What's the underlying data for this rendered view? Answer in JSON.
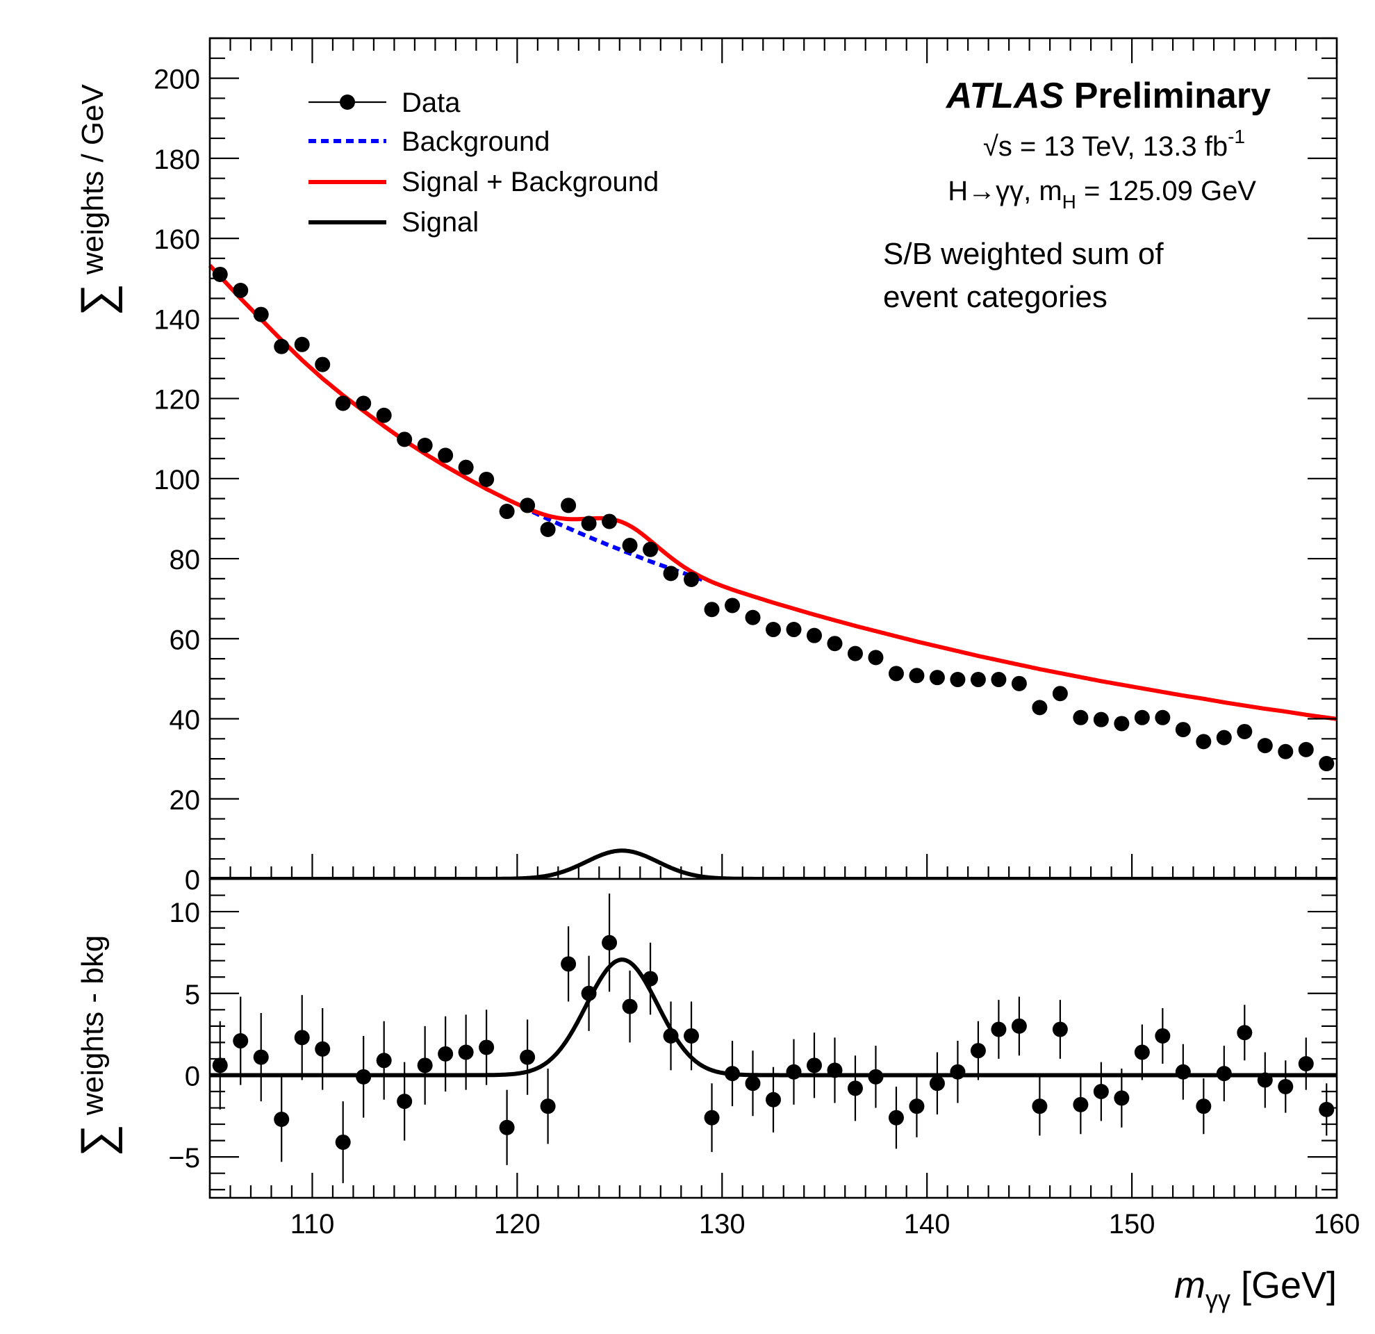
{
  "chart_data": [
    {
      "type": "scatter",
      "panel": "main",
      "ylabel_symbol": "∑",
      "ylabel": "weights / GeV",
      "xlim": [
        105,
        160
      ],
      "ylim": [
        0,
        210
      ],
      "yticks": [
        0,
        20,
        40,
        60,
        80,
        100,
        120,
        140,
        160,
        180,
        200
      ],
      "legend": {
        "placement": "top-left",
        "entries": [
          {
            "label": "Data",
            "style": "marker"
          },
          {
            "label": "Background",
            "style": "dashed",
            "color": "#0000ff"
          },
          {
            "label": "Signal + Background",
            "style": "line",
            "color": "#ff0000"
          },
          {
            "label": "Signal",
            "style": "line",
            "color": "#000000"
          }
        ]
      },
      "annotations": {
        "experiment": "ATLAS",
        "status": "Preliminary",
        "energy_prefix": "√s = 13 TeV, 13.3 fb",
        "energy_sup": "-1",
        "channel_prefix": "H→γγ, m",
        "channel_sub": "H",
        "channel_suffix": " = 125.09 GeV",
        "note_line1": "S/B weighted sum of",
        "note_line2": "event categories"
      },
      "x": [
        105.5,
        106.5,
        107.5,
        108.5,
        109.5,
        110.5,
        111.5,
        112.5,
        113.5,
        114.5,
        115.5,
        116.5,
        117.5,
        118.5,
        119.5,
        120.5,
        121.5,
        122.5,
        123.5,
        124.5,
        125.5,
        126.5,
        127.5,
        128.5,
        129.5,
        130.5,
        131.5,
        132.5,
        133.5,
        134.5,
        135.5,
        136.5,
        137.5,
        138.5,
        139.5,
        140.5,
        141.5,
        142.5,
        143.5,
        144.5,
        145.5,
        146.5,
        147.5,
        148.5,
        149.5,
        150.5,
        151.5,
        152.5,
        153.5,
        154.5,
        155.5,
        156.5,
        157.5,
        158.5,
        159.5
      ],
      "series": [
        {
          "name": "Data",
          "values": [
            151,
            147,
            141,
            133,
            133.5,
            128.5,
            118.8,
            118.8,
            115.8,
            109.8,
            108.3,
            105.8,
            102.8,
            99.8,
            91.8,
            93.3,
            87.3,
            93.3,
            88.8,
            89.3,
            83.3,
            82.3,
            76.3,
            74.8,
            67.3,
            68.3,
            65.3,
            62.3,
            62.3,
            60.8,
            58.8,
            56.3,
            55.3,
            51.3,
            50.8,
            50.3,
            49.8,
            49.8,
            49.8,
            48.8,
            42.8,
            46.3,
            40.3,
            39.8,
            38.8,
            40.3,
            40.3,
            37.3,
            34.3,
            35.3,
            36.8,
            33.3,
            31.8,
            32.3,
            28.8
          ]
        },
        {
          "name": "Background",
          "values": [
            150.5,
            145,
            139.8,
            134.6,
            129.6,
            125,
            120.8,
            116.9,
            113.1,
            109.5,
            106.2,
            103.1,
            100.2,
            97.4,
            94.8,
            92.3,
            89.9,
            87.6,
            85.4,
            83.3,
            81.3,
            79.3,
            77.5,
            75.7,
            73.9,
            72.2,
            70.6,
            69,
            67.5,
            66,
            64.6,
            63.2,
            61.9,
            60.6,
            59.3,
            58.1,
            56.9,
            55.7,
            54.6,
            53.5,
            52.4,
            51.4,
            50.4,
            49.4,
            48.5,
            47.6,
            46.7,
            45.8,
            45,
            44.1,
            43.3,
            42.5,
            41.8,
            41,
            40.3
          ]
        },
        {
          "name": "Signal",
          "values": [
            0,
            0,
            0,
            0,
            0,
            0,
            0,
            0,
            0,
            0,
            0,
            0,
            0,
            0.01,
            0.05,
            0.23,
            0.82,
            2.22,
            4.55,
            6.66,
            6.94,
            5.19,
            2.78,
            1.07,
            0.29,
            0.06,
            0.01,
            0,
            0,
            0,
            0,
            0,
            0,
            0,
            0,
            0,
            0,
            0,
            0,
            0,
            0,
            0,
            0,
            0,
            0,
            0,
            0,
            0,
            0,
            0,
            0,
            0,
            0,
            0,
            0
          ]
        }
      ]
    },
    {
      "type": "scatter",
      "panel": "residual",
      "ylabel_symbol": "∑",
      "ylabel": "weights - bkg",
      "xlabel_main": "m",
      "xlabel_sub": "γγ",
      "xlabel_unit": " [GeV]",
      "xlim": [
        105,
        160
      ],
      "ylim": [
        -7.5,
        12
      ],
      "yticks": [
        -5,
        0,
        5,
        10
      ],
      "ytick_labels": [
        "−5",
        "0",
        "5",
        "10"
      ],
      "xticks": [
        110,
        120,
        130,
        140,
        150,
        160
      ],
      "x": [
        105.5,
        106.5,
        107.5,
        108.5,
        109.5,
        110.5,
        111.5,
        112.5,
        113.5,
        114.5,
        115.5,
        116.5,
        117.5,
        118.5,
        119.5,
        120.5,
        121.5,
        122.5,
        123.5,
        124.5,
        125.5,
        126.5,
        127.5,
        128.5,
        129.5,
        130.5,
        131.5,
        132.5,
        133.5,
        134.5,
        135.5,
        136.5,
        137.5,
        138.5,
        139.5,
        140.5,
        141.5,
        142.5,
        143.5,
        144.5,
        145.5,
        146.5,
        147.5,
        148.5,
        149.5,
        150.5,
        151.5,
        152.5,
        153.5,
        154.5,
        155.5,
        156.5,
        157.5,
        158.5,
        159.5
      ],
      "values": [
        0.6,
        2.1,
        1.1,
        -2.7,
        2.3,
        1.6,
        -4.1,
        -0.1,
        0.9,
        -1.6,
        0.6,
        1.3,
        1.4,
        1.7,
        -3.2,
        1.1,
        -1.9,
        6.8,
        5.0,
        8.1,
        4.2,
        5.9,
        2.4,
        2.4,
        -2.6,
        0.1,
        -0.5,
        -1.5,
        0.2,
        0.6,
        0.3,
        -0.8,
        -0.1,
        -2.6,
        -1.9,
        -0.5,
        0.2,
        1.5,
        2.8,
        3.0,
        -1.9,
        2.8,
        -1.8,
        -1.0,
        -1.4,
        1.4,
        2.4,
        0.2,
        -1.9,
        0.1,
        2.6,
        -0.3,
        -0.7,
        0.7,
        -2.1
      ],
      "errors": [
        2.7,
        2.7,
        2.7,
        2.6,
        2.6,
        2.5,
        2.5,
        2.5,
        2.4,
        2.4,
        2.4,
        2.3,
        2.3,
        2.3,
        2.3,
        2.3,
        2.3,
        2.3,
        2.3,
        3.0,
        2.2,
        2.2,
        2.1,
        2.1,
        2.1,
        2.0,
        2.0,
        2.0,
        2.0,
        2.0,
        2.0,
        2.0,
        1.9,
        1.9,
        1.9,
        1.9,
        1.9,
        1.8,
        1.8,
        1.8,
        1.8,
        1.8,
        1.8,
        1.8,
        1.8,
        1.7,
        1.7,
        1.7,
        1.7,
        1.7,
        1.7,
        1.7,
        1.6,
        1.6,
        1.6
      ],
      "signal_model": "Signal"
    }
  ]
}
